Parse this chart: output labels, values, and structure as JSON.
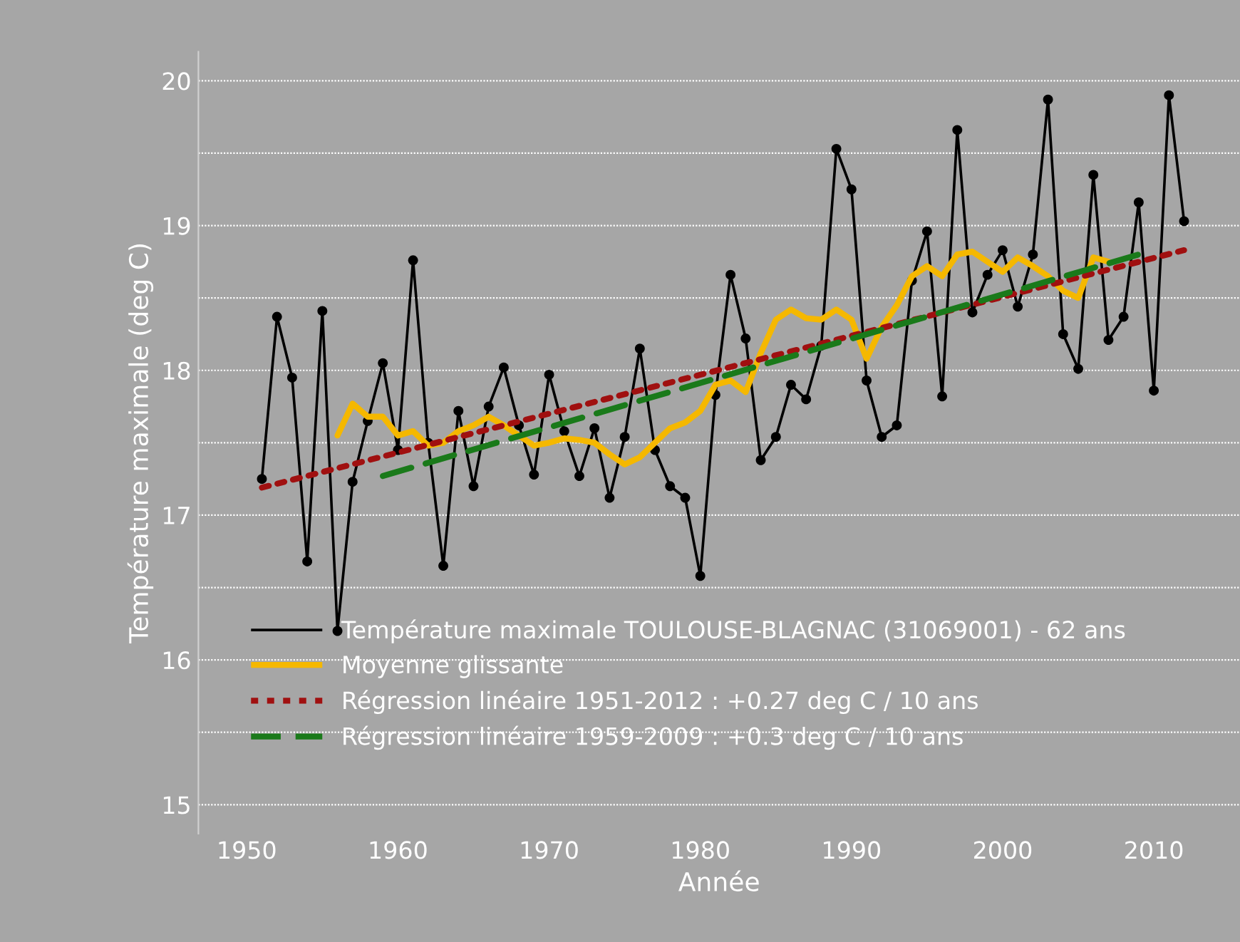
{
  "chart_data": {
    "type": "line",
    "xlabel": "Année",
    "ylabel": "Température maximale (deg C)",
    "xlim": [
      1946.8,
      2015.7
    ],
    "xticks": [
      1950,
      1960,
      1970,
      1980,
      1990,
      2000,
      2010
    ],
    "ylim": [
      14.8,
      20.2
    ],
    "yticks": [
      15,
      {
        "value": 15.5,
        "label": null
      },
      16,
      {
        "value": 16.5,
        "label": null
      },
      17,
      {
        "value": 17.5,
        "label": null
      },
      18,
      {
        "value": 18.5,
        "label": null
      },
      19,
      {
        "value": 19.5,
        "label": null
      },
      20
    ],
    "grid": "y",
    "legend": "bottom left",
    "series": [
      {
        "name": "Température maximale TOULOUSE-BLAGNAC (31069001) - 62 ans",
        "color": "#000000",
        "marker": "circle",
        "line_style": "solid",
        "x": [
          1951,
          1952,
          1953,
          1954,
          1955,
          1956,
          1957,
          1958,
          1959,
          1960,
          1961,
          1962,
          1963,
          1964,
          1965,
          1966,
          1967,
          1968,
          1969,
          1970,
          1971,
          1972,
          1973,
          1974,
          1975,
          1976,
          1977,
          1978,
          1979,
          1980,
          1981,
          1982,
          1983,
          1984,
          1985,
          1986,
          1987,
          1988,
          1989,
          1990,
          1991,
          1992,
          1993,
          1994,
          1995,
          1996,
          1997,
          1998,
          1999,
          2000,
          2001,
          2002,
          2003,
          2004,
          2005,
          2006,
          2007,
          2008,
          2009,
          2010,
          2011,
          2012
        ],
        "values": [
          17.25,
          18.37,
          17.95,
          16.68,
          18.41,
          16.2,
          17.23,
          17.65,
          18.05,
          17.45,
          18.76,
          17.5,
          16.65,
          17.72,
          17.2,
          17.75,
          18.02,
          17.62,
          17.28,
          17.97,
          17.58,
          17.27,
          17.6,
          17.12,
          17.54,
          18.15,
          17.45,
          17.2,
          17.12,
          16.58,
          17.83,
          18.66,
          18.22,
          17.38,
          17.54,
          17.9,
          17.8,
          18.17,
          19.53,
          19.25,
          17.93,
          17.54,
          17.62,
          18.62,
          18.96,
          17.82,
          19.66,
          18.4,
          18.66,
          18.83,
          18.44,
          18.8,
          19.87,
          18.25,
          18.01,
          19.35,
          18.21,
          18.37,
          19.16,
          17.86,
          19.9,
          19.03
        ]
      },
      {
        "name": "Moyenne glissante",
        "color": "#f5b800",
        "marker": "none",
        "line_style": "solid",
        "x": [
          1956,
          1957,
          1958,
          1959,
          1960,
          1961,
          1962,
          1963,
          1964,
          1965,
          1966,
          1967,
          1968,
          1969,
          1970,
          1971,
          1972,
          1973,
          1974,
          1975,
          1976,
          1977,
          1978,
          1979,
          1980,
          1981,
          1982,
          1983,
          1984,
          1985,
          1986,
          1987,
          1988,
          1989,
          1990,
          1991,
          1992,
          1993,
          1994,
          1995,
          1996,
          1997,
          1998,
          1999,
          2000,
          2001,
          2002,
          2003,
          2004,
          2005,
          2006,
          2007
        ],
        "values": [
          17.55,
          17.77,
          17.68,
          17.68,
          17.55,
          17.58,
          17.48,
          17.5,
          17.58,
          17.62,
          17.68,
          17.62,
          17.55,
          17.48,
          17.5,
          17.53,
          17.52,
          17.5,
          17.42,
          17.35,
          17.4,
          17.5,
          17.6,
          17.64,
          17.72,
          17.9,
          17.93,
          17.85,
          18.12,
          18.35,
          18.42,
          18.36,
          18.35,
          18.42,
          18.35,
          18.08,
          18.3,
          18.45,
          18.65,
          18.72,
          18.65,
          18.8,
          18.82,
          18.75,
          18.68,
          18.78,
          18.72,
          18.65,
          18.55,
          18.5,
          18.78,
          18.75
        ]
      },
      {
        "name": "Régression linéaire 1951-2012 : +0.27 deg C / 10 ans",
        "color": "#a01010",
        "marker": "none",
        "line_style": "dotted",
        "x": [
          1951,
          2012
        ],
        "values": [
          17.19,
          18.83
        ]
      },
      {
        "name": "Régression linéaire 1959-2009 : +0.3 deg C / 10 ans",
        "color": "#1a7a1a",
        "marker": "none",
        "line_style": "dashed",
        "x": [
          1959,
          2009
        ],
        "values": [
          17.27,
          18.8
        ]
      }
    ]
  }
}
